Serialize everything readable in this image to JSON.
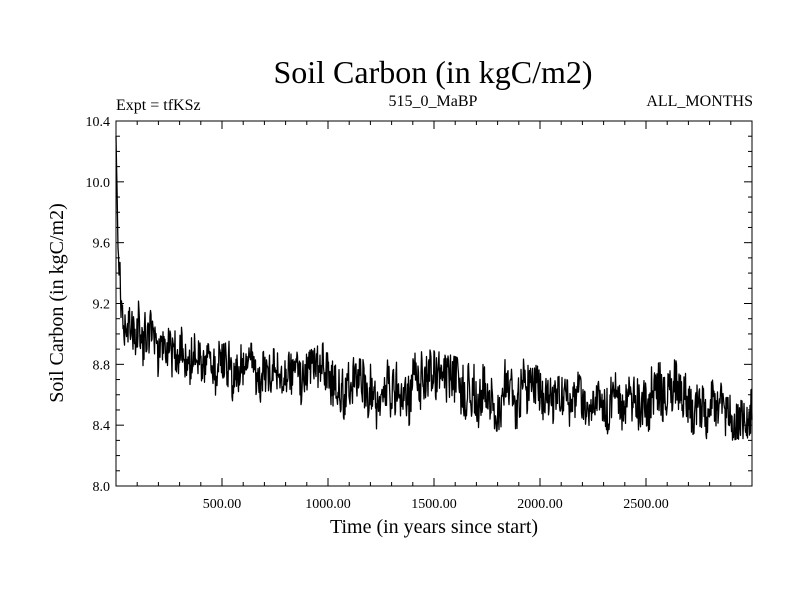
{
  "chart_data": {
    "type": "line",
    "title": "Soil Carbon (in kgC/m2)",
    "subtitle_left": "Expt = tfKSz",
    "subtitle_center": "515_0_MaBP",
    "subtitle_right": "ALL_MONTHS",
    "xlabel": "Time (in years since start)",
    "ylabel": "Soil Carbon (in kgC/m2)",
    "xlim": [
      0,
      3000
    ],
    "ylim": [
      8.0,
      10.4
    ],
    "xticks": [
      500,
      1000,
      1500,
      2000,
      2500
    ],
    "xtick_labels": [
      "500.00",
      "1000.00",
      "1500.00",
      "2000.00",
      "2500.00"
    ],
    "yticks": [
      8.0,
      8.4,
      8.8,
      9.2,
      9.6,
      10.0,
      10.4
    ],
    "ytick_labels": [
      "8.0",
      "8.4",
      "8.8",
      "9.2",
      "9.6",
      "10.0",
      "10.4"
    ],
    "series": [
      {
        "name": "Soil Carbon",
        "color": "#000000",
        "x": [
          0,
          5,
          10,
          20,
          30,
          50,
          75,
          100,
          150,
          200,
          250,
          300,
          400,
          500,
          600,
          700,
          800,
          900,
          1000,
          1100,
          1200,
          1300,
          1400,
          1500,
          1600,
          1700,
          1800,
          1900,
          2000,
          2100,
          2200,
          2300,
          2400,
          2500,
          2600,
          2700,
          2800,
          2900,
          3000
        ],
        "mean": [
          10.25,
          9.95,
          9.6,
          9.3,
          9.1,
          8.98,
          8.97,
          8.96,
          8.95,
          8.93,
          8.9,
          8.88,
          8.84,
          8.8,
          8.78,
          8.75,
          8.73,
          8.71,
          8.7,
          8.66,
          8.64,
          8.63,
          8.63,
          8.64,
          8.63,
          8.6,
          8.6,
          8.62,
          8.6,
          8.58,
          8.56,
          8.56,
          8.56,
          8.58,
          8.6,
          8.58,
          8.55,
          8.54,
          8.56
        ],
        "upper": [
          10.32,
          10.1,
          9.8,
          9.45,
          9.2,
          9.15,
          9.2,
          9.22,
          9.18,
          9.1,
          9.06,
          9.05,
          8.98,
          8.96,
          8.95,
          8.92,
          8.88,
          8.88,
          8.96,
          8.85,
          8.82,
          8.83,
          8.87,
          8.9,
          8.85,
          8.8,
          8.82,
          8.85,
          8.78,
          8.78,
          8.74,
          8.74,
          8.75,
          8.8,
          8.86,
          8.77,
          8.74,
          8.72,
          8.78
        ],
        "lower": [
          10.15,
          9.8,
          9.4,
          9.05,
          8.9,
          8.78,
          8.75,
          8.74,
          8.72,
          8.72,
          8.66,
          8.62,
          8.6,
          8.58,
          8.54,
          8.52,
          8.5,
          8.47,
          8.46,
          8.42,
          8.38,
          8.36,
          8.4,
          8.42,
          8.38,
          8.38,
          8.36,
          8.38,
          8.37,
          8.35,
          8.34,
          8.34,
          8.35,
          8.35,
          8.36,
          8.32,
          8.31,
          8.3,
          8.32
        ]
      }
    ]
  }
}
